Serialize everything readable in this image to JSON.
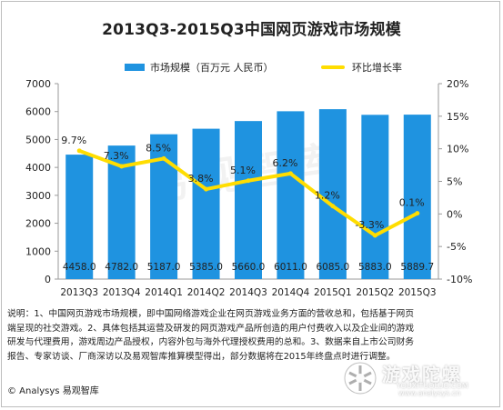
{
  "chart_data": {
    "type": "bar+line",
    "title": "2013Q3-2015Q3中国网页游戏市场规模",
    "categories": [
      "2013Q3",
      "2013Q4",
      "2014Q1",
      "2014Q2",
      "2014Q3",
      "2014Q4",
      "2015Q1",
      "2015Q2",
      "2015Q3"
    ],
    "series": [
      {
        "name": "市场规模（百万元 人民币）",
        "type": "bar",
        "axis": "left",
        "color": "#1f93e0",
        "values": [
          4458.0,
          4782.0,
          5187.0,
          5385.0,
          5660.0,
          6011.0,
          6085.0,
          5883.0,
          5889.7
        ],
        "labels": [
          "4458.0",
          "4782.0",
          "5187.0",
          "5385.0",
          "5660.0",
          "6011.0",
          "6085.0",
          "5883.0",
          "5889.7"
        ]
      },
      {
        "name": "环比增长率",
        "type": "line",
        "axis": "right",
        "color": "#ffdd00",
        "values": [
          9.7,
          7.3,
          8.5,
          3.8,
          5.1,
          6.2,
          1.2,
          -3.3,
          0.1
        ],
        "labels": [
          "9.7%",
          "7.3%",
          "8.5%",
          "3.8%",
          "5.1%",
          "6.2%",
          "1.2%",
          "-3.3%",
          "0.1%"
        ]
      }
    ],
    "y_left": {
      "ylim": [
        0,
        7000
      ],
      "ticks": [
        "0",
        "1000",
        "2000",
        "3000",
        "4000",
        "5000",
        "6000",
        "7000"
      ]
    },
    "y_right": {
      "ylim": [
        -10,
        20
      ],
      "ticks": [
        "-10%",
        "-5%",
        "0%",
        "5%",
        "10%",
        "15%",
        "20%"
      ]
    },
    "grid": false,
    "legend_position": "top"
  },
  "notes": [
    "说明：1、中国网页游戏市场规模，即中国网络游戏企业在网页游戏业务方面的营收总和，包括基于网页",
    "端呈现的社交游戏。2、具体包括其运营及研发的网页游戏产品所创造的用户付费收入以及企业间的游戏",
    "研发与代理费用，游戏周边产品授权，内容外包与海外代理授权费用的总和。3、数据来自上市公司财务",
    "报告、专家访谈、厂商深访以及易观智库推算模型得出，部分数据将在2015年终盘点时进行调整。"
  ],
  "source": "© Analysys 易观智库",
  "watermark": {
    "center_text": "易观智库",
    "logo_text": "游戏陀螺",
    "logo_url": "YOUXITUOLUO.COM",
    "site_url": "www.analysys.cn"
  }
}
